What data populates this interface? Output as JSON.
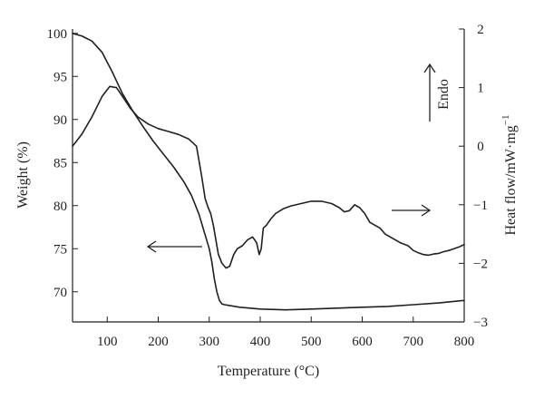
{
  "chart_data": {
    "type": "line",
    "xlabel": "Temperature (°C)",
    "ylabel": "Weight (%)",
    "y2label": "Heat flow/mW·mg",
    "y2label_sup": "−1",
    "xlim": [
      32,
      800
    ],
    "ylim": [
      66.5,
      100.5
    ],
    "y2lim": [
      -3,
      2
    ],
    "xticks": [
      100,
      200,
      300,
      400,
      500,
      600,
      700,
      800
    ],
    "yticks": [
      70,
      75,
      80,
      85,
      90,
      95,
      100
    ],
    "y2ticks": [
      -3,
      -2,
      -1,
      0,
      1,
      2
    ],
    "grid": false,
    "series": [
      {
        "axis": "left",
        "x": [
          32,
          50,
          70,
          90,
          110,
          130,
          150,
          170,
          190,
          210,
          230,
          250,
          265,
          280,
          290,
          300,
          305,
          310,
          315,
          320,
          325,
          330,
          340,
          360,
          400,
          450,
          500,
          550,
          600,
          650,
          700,
          750,
          800
        ],
        "values": [
          100,
          99.7,
          99.1,
          97.8,
          95.5,
          93.0,
          91.0,
          89.2,
          87.5,
          86.0,
          84.5,
          82.8,
          81.2,
          79.0,
          77.0,
          75.0,
          73.5,
          71.5,
          70.0,
          69.0,
          68.6,
          68.5,
          68.4,
          68.2,
          68.0,
          67.9,
          68.0,
          68.1,
          68.2,
          68.3,
          68.5,
          68.7,
          69.0
        ]
      },
      {
        "axis": "right",
        "x": [
          32,
          50,
          70,
          90,
          105,
          118,
          130,
          145,
          160,
          180,
          200,
          220,
          240,
          260,
          275,
          285,
          292,
          298,
          303,
          308,
          313,
          318,
          325,
          333,
          340,
          348,
          355,
          365,
          375,
          385,
          393,
          398,
          402,
          406,
          412,
          420,
          430,
          445,
          460,
          480,
          500,
          520,
          540,
          555,
          565,
          575,
          585,
          595,
          605,
          615,
          625,
          635,
          645,
          655,
          665,
          675,
          690,
          700,
          710,
          720,
          730,
          740,
          750,
          760,
          770,
          780,
          790,
          800
        ],
        "values": [
          0.0,
          0.2,
          0.5,
          0.85,
          1.02,
          1.0,
          0.85,
          0.65,
          0.5,
          0.38,
          0.3,
          0.25,
          0.2,
          0.12,
          0.0,
          -0.5,
          -0.9,
          -1.05,
          -1.15,
          -1.35,
          -1.6,
          -1.85,
          -2.0,
          -2.08,
          -2.05,
          -1.85,
          -1.75,
          -1.7,
          -1.6,
          -1.55,
          -1.65,
          -1.85,
          -1.75,
          -1.4,
          -1.35,
          -1.25,
          -1.15,
          -1.07,
          -1.02,
          -0.98,
          -0.94,
          -0.94,
          -0.98,
          -1.05,
          -1.12,
          -1.1,
          -1.0,
          -1.05,
          -1.15,
          -1.3,
          -1.35,
          -1.4,
          -1.5,
          -1.55,
          -1.6,
          -1.65,
          -1.7,
          -1.78,
          -1.82,
          -1.85,
          -1.86,
          -1.84,
          -1.83,
          -1.8,
          -1.78,
          -1.75,
          -1.72,
          -1.68
        ]
      }
    ],
    "annotations": {
      "endo": "Endo"
    }
  }
}
